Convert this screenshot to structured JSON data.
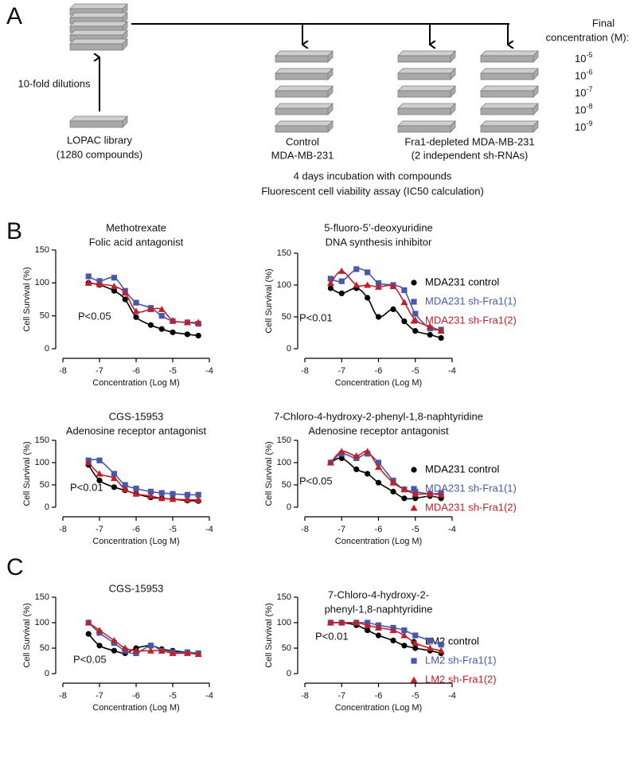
{
  "panel_a": {
    "label": "A",
    "dilution": "10-fold dilutions",
    "library": [
      "LOPAC library",
      "(1280 compounds)"
    ],
    "control": [
      "Control",
      "MDA-MB-231"
    ],
    "depleted": [
      "Fra1-depleted MDA-MB-231",
      "(2 independent sh-RNAs)"
    ],
    "assay": [
      "4 days incubation with compounds",
      "Fluorescent cell viability assay (IC50 calculation)"
    ],
    "final_concentration": [
      "Final",
      "concentration (M):"
    ],
    "concentrations": [
      {
        "base": "10",
        "exponent": "-5"
      },
      {
        "base": "10",
        "exponent": "-6"
      },
      {
        "base": "10",
        "exponent": "-7"
      },
      {
        "base": "10",
        "exponent": "-8"
      },
      {
        "base": "10",
        "exponent": "-9"
      }
    ]
  },
  "panel_labels": [
    "B",
    "C"
  ],
  "chart_data": [
    {
      "type": "scatter",
      "title": "Methotrexate",
      "subtitle": "Folic acid antagonist",
      "x_label": "Concentration (Log M)",
      "y_label": "Cell Survival (%)",
      "annotation": "P<0.05",
      "x": [
        -7.3,
        -7,
        -6.6,
        -6.3,
        -6,
        -5.6,
        -5.3,
        -5,
        -4.6,
        -4.3
      ],
      "xlim": [
        -8,
        -4
      ],
      "xticks": [
        -8,
        -7,
        -6,
        -5,
        -4
      ],
      "ylim": [
        0,
        150
      ],
      "yticks": [
        0,
        50,
        100,
        150
      ],
      "series": [
        {
          "color": "#000000",
          "marker": "circle",
          "values": [
            100,
            97,
            88,
            75,
            48,
            36,
            30,
            25,
            22,
            20
          ]
        },
        {
          "color": "#4a58a8",
          "marker": "square",
          "values": [
            110,
            103,
            108,
            88,
            70,
            62,
            50,
            42,
            40,
            38
          ]
        },
        {
          "color": "#c0202a",
          "marker": "triangle",
          "values": [
            100,
            98,
            95,
            85,
            57,
            60,
            60,
            43,
            40,
            40
          ]
        }
      ]
    },
    {
      "type": "scatter",
      "title": "5-fluoro-5’-deoxyuridine",
      "subtitle": "DNA synthesis inhibitor",
      "x_label": "Concentration (Log M)",
      "y_label": "Cell Survival (%)",
      "annotation": "P<0.01",
      "x": [
        -7.3,
        -7,
        -6.6,
        -6.3,
        -6,
        -5.6,
        -5.3,
        -5,
        -4.6,
        -4.3
      ],
      "xlim": [
        -8,
        -4
      ],
      "xticks": [
        -8,
        -7,
        -6,
        -5,
        -4
      ],
      "ylim": [
        0,
        150
      ],
      "yticks": [
        0,
        50,
        100,
        150
      ],
      "legend": "right",
      "series": [
        {
          "name": "MDA231 control",
          "color": "#000000",
          "marker": "circle",
          "values": [
            95,
            87,
            95,
            80,
            50,
            62,
            43,
            28,
            22,
            17
          ]
        },
        {
          "name": "MDA231 sh-Fra1(1)",
          "color": "#4a58a8",
          "marker": "square",
          "values": [
            110,
            106,
            125,
            120,
            103,
            100,
            92,
            55,
            32,
            30
          ]
        },
        {
          "name": "MDA231 sh-Fra1(2)",
          "color": "#c0202a",
          "marker": "triangle",
          "values": [
            103,
            122,
            100,
            100,
            97,
            98,
            73,
            45,
            35,
            28
          ]
        }
      ]
    },
    {
      "type": "scatter",
      "title": "CGS-15953",
      "subtitle": "Adenosine receptor antagonist",
      "x_label": "Concentration (Log M)",
      "y_label": "Cell Survival (%)",
      "annotation": "P<0.01",
      "x": [
        -7.3,
        -7,
        -6.6,
        -6.3,
        -6,
        -5.6,
        -5.3,
        -5,
        -4.6,
        -4.3
      ],
      "xlim": [
        -8,
        -4
      ],
      "xticks": [
        -8,
        -7,
        -6,
        -5,
        -4
      ],
      "ylim": [
        0,
        150
      ],
      "yticks": [
        0,
        50,
        100,
        150
      ],
      "series": [
        {
          "color": "#000000",
          "marker": "circle",
          "values": [
            95,
            60,
            45,
            38,
            30,
            22,
            20,
            18,
            15,
            14
          ]
        },
        {
          "color": "#4a58a8",
          "marker": "square",
          "values": [
            105,
            105,
            75,
            50,
            42,
            35,
            32,
            30,
            28,
            28
          ]
        },
        {
          "color": "#c0202a",
          "marker": "triangle",
          "values": [
            100,
            75,
            65,
            40,
            30,
            25,
            20,
            18,
            17,
            16
          ]
        }
      ]
    },
    {
      "type": "scatter",
      "title": "7-Chloro-4-hydroxy-2-phenyl-1,8-naphtyridine",
      "subtitle": "Adenosine receptor antagonist",
      "x_label": "Concentration (Log M)",
      "y_label": "Cell Survival (%)",
      "annotation": "P<0.05",
      "x": [
        -7.3,
        -7,
        -6.6,
        -6.3,
        -6,
        -5.6,
        -5.3,
        -5,
        -4.6,
        -4.3
      ],
      "xlim": [
        -8,
        -4
      ],
      "xticks": [
        -8,
        -7,
        -6,
        -5,
        -4
      ],
      "ylim": [
        0,
        150
      ],
      "yticks": [
        0,
        50,
        100,
        150
      ],
      "legend": "right",
      "series": [
        {
          "name": "MDA231 control",
          "color": "#000000",
          "marker": "circle",
          "values": [
            100,
            110,
            85,
            75,
            55,
            35,
            20,
            20,
            25,
            20
          ]
        },
        {
          "name": "MDA231 sh-Fra1(1)",
          "color": "#4a58a8",
          "marker": "square",
          "values": [
            100,
            120,
            110,
            120,
            100,
            60,
            40,
            35,
            30,
            32
          ]
        },
        {
          "name": "MDA231 sh-Fra1(2)",
          "color": "#c0202a",
          "marker": "triangle",
          "values": [
            100,
            125,
            115,
            125,
            90,
            55,
            40,
            30,
            30,
            28
          ]
        }
      ]
    },
    {
      "type": "scatter",
      "title": "CGS-15953",
      "x_label": "Concentration (Log M)",
      "y_label": "Cell Survival (%)",
      "annotation": "P<0.05",
      "x": [
        -7.3,
        -7,
        -6.6,
        -6.3,
        -6,
        -5.6,
        -5.3,
        -5,
        -4.6,
        -4.3
      ],
      "xlim": [
        -8,
        -4
      ],
      "xticks": [
        -8,
        -7,
        -6,
        -5,
        -4
      ],
      "ylim": [
        0,
        150
      ],
      "yticks": [
        0,
        50,
        100,
        150
      ],
      "series": [
        {
          "color": "#000000",
          "marker": "circle",
          "values": [
            78,
            55,
            45,
            40,
            50,
            55,
            48,
            45,
            42,
            40
          ]
        },
        {
          "color": "#4a58a8",
          "marker": "square",
          "values": [
            100,
            80,
            60,
            45,
            40,
            55,
            45,
            42,
            42,
            40
          ]
        },
        {
          "color": "#c0202a",
          "marker": "triangle",
          "values": [
            100,
            85,
            65,
            50,
            45,
            45,
            45,
            40,
            40,
            38
          ]
        }
      ]
    },
    {
      "type": "scatter",
      "title": "7-Chloro-4-hydroxy-2-",
      "subtitle": "phenyl-1,8-naphtyridine",
      "x_label": "Concentration (Log M)",
      "y_label": "Cell Survival (%)",
      "annotation": "P<0.01",
      "x": [
        -7.3,
        -7,
        -6.6,
        -6.3,
        -6,
        -5.6,
        -5.3,
        -5,
        -4.6,
        -4.3
      ],
      "xlim": [
        -8,
        -4
      ],
      "xticks": [
        -8,
        -7,
        -6,
        -5,
        -4
      ],
      "ylim": [
        0,
        150
      ],
      "yticks": [
        0,
        50,
        100,
        150
      ],
      "legend": "right",
      "series": [
        {
          "name": "LM2 control",
          "color": "#000000",
          "marker": "circle",
          "values": [
            100,
            100,
            95,
            85,
            75,
            65,
            55,
            50,
            45,
            40
          ]
        },
        {
          "name": "LM2 sh-Fra1(1)",
          "color": "#4a58a8",
          "marker": "square",
          "values": [
            100,
            100,
            100,
            100,
            95,
            90,
            85,
            75,
            65,
            57
          ]
        },
        {
          "name": "LM2 sh-Fra1(2)",
          "color": "#c0202a",
          "marker": "triangle",
          "values": [
            100,
            100,
            100,
            95,
            90,
            85,
            75,
            60,
            50,
            45
          ]
        }
      ]
    }
  ]
}
